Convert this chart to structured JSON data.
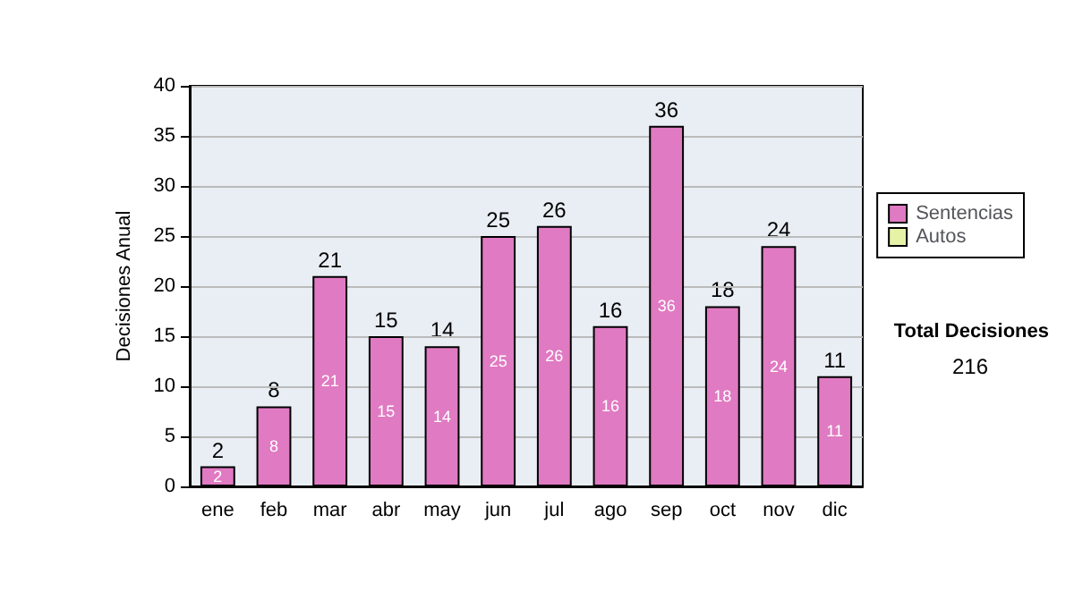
{
  "chart_data": {
    "type": "bar",
    "ylabel": "Decisiones Anual",
    "categories": [
      "ene",
      "feb",
      "mar",
      "abr",
      "may",
      "jun",
      "jul",
      "ago",
      "sep",
      "oct",
      "nov",
      "dic"
    ],
    "series": [
      {
        "name": "Sentencias",
        "color": "#e07ac2",
        "values": [
          2,
          8,
          21,
          15,
          14,
          25,
          26,
          16,
          36,
          18,
          24,
          11
        ],
        "value_labels": [
          "2",
          "8",
          "21",
          "15",
          "14",
          "25",
          "26",
          "16",
          "36",
          "18",
          "24",
          "11"
        ]
      },
      {
        "name": "Autos",
        "color": "#e6f2a6",
        "values": [
          null,
          null,
          null,
          null,
          null,
          null,
          null,
          null,
          null,
          null,
          null,
          null
        ]
      }
    ],
    "stacked": true,
    "totals": [
      "2",
      "8",
      "21",
      "15",
      "14",
      "25",
      "26",
      "16",
      "36",
      "18",
      "24",
      "11"
    ],
    "ylim": [
      0,
      40
    ],
    "yticks": [
      0,
      5,
      10,
      15,
      20,
      25,
      30,
      35,
      40
    ],
    "grid": "y",
    "legend": "right",
    "annotations": [
      "Total Decisiones",
      "216"
    ]
  }
}
